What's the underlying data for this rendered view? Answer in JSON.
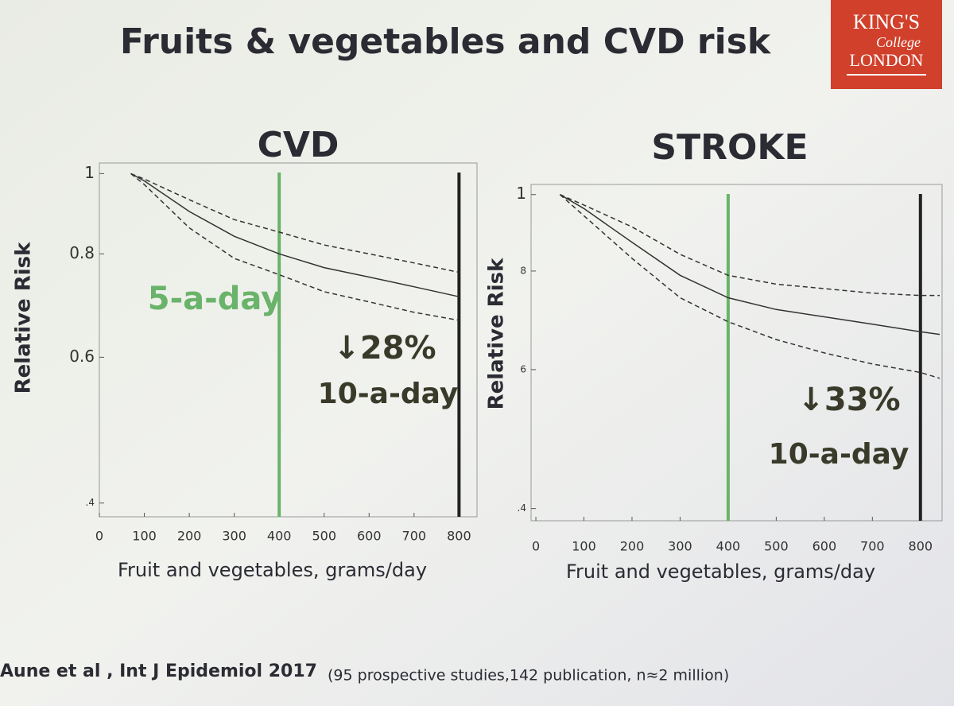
{
  "title": "Fruits & vegetables and CVD risk",
  "logo": {
    "line1": "KING'S",
    "line2": "College",
    "line3": "LONDON"
  },
  "citation": {
    "main": "Aune et al , Int J Epidemiol 2017",
    "note": "(95 prospective studies,142 publication, n≈2 million)"
  },
  "chart_data": [
    {
      "type": "line",
      "title": "CVD",
      "xlabel": "Fruit and vegetables, grams/day",
      "ylabel": "Relative Risk",
      "log_y": true,
      "x": [
        70,
        100,
        200,
        300,
        400,
        500,
        600,
        700,
        800
      ],
      "series": [
        {
          "name": "central",
          "color": "#333333",
          "dashed": false,
          "values": [
            1,
            0.98,
            0.9,
            0.84,
            0.8,
            0.77,
            0.75,
            0.73,
            0.71
          ]
        },
        {
          "name": "upper",
          "color": "#333333",
          "dashed": true,
          "values": [
            1,
            0.985,
            0.93,
            0.88,
            0.85,
            0.82,
            0.8,
            0.78,
            0.76
          ]
        },
        {
          "name": "lower",
          "color": "#333333",
          "dashed": true,
          "values": [
            1,
            0.97,
            0.86,
            0.79,
            0.755,
            0.72,
            0.7,
            0.68,
            0.665
          ]
        }
      ],
      "vlines": [
        {
          "x": 400,
          "color": "#6ab36a"
        },
        {
          "x": 800,
          "color": "#222222"
        }
      ],
      "annotations": [
        {
          "text": "5-a-day",
          "color": "#6ab36a"
        },
        {
          "text": "↓28%",
          "color": "#3a3a2a"
        },
        {
          "text": "10-a-day",
          "color": "#3a3a2a"
        }
      ],
      "xlim": [
        0,
        840
      ],
      "xticks": [
        0,
        100,
        200,
        300,
        400,
        500,
        600,
        700,
        800
      ],
      "ylim": [
        0.385,
        1.03
      ],
      "yticks": [
        1,
        0.8,
        0.6,
        {
          "value": 0.4,
          "label": ".4"
        }
      ]
    },
    {
      "type": "line",
      "title": "STROKE",
      "xlabel": "Fruit and vegetables, grams/day",
      "ylabel": "Relative Risk",
      "log_y": true,
      "x": [
        50,
        100,
        200,
        300,
        400,
        500,
        600,
        700,
        800,
        840
      ],
      "series": [
        {
          "name": "central",
          "color": "#333333",
          "dashed": false,
          "values": [
            1,
            0.96,
            0.87,
            0.79,
            0.74,
            0.715,
            0.7,
            0.685,
            0.67,
            0.665
          ]
        },
        {
          "name": "upper",
          "color": "#333333",
          "dashed": true,
          "values": [
            1,
            0.97,
            0.91,
            0.84,
            0.79,
            0.77,
            0.76,
            0.75,
            0.745,
            0.745
          ]
        },
        {
          "name": "lower",
          "color": "#333333",
          "dashed": true,
          "values": [
            1,
            0.94,
            0.83,
            0.74,
            0.69,
            0.655,
            0.63,
            0.61,
            0.595,
            0.585
          ]
        }
      ],
      "vlines": [
        {
          "x": 400,
          "color": "#6ab36a"
        },
        {
          "x": 800,
          "color": "#222222"
        }
      ],
      "annotations": [
        {
          "text": "↓33%",
          "color": "#3a3a2a"
        },
        {
          "text": "10-a-day",
          "color": "#3a3a2a"
        }
      ],
      "xlim": [
        -10,
        845
      ],
      "xticks": [
        0,
        100,
        200,
        300,
        400,
        500,
        600,
        700,
        800
      ],
      "ylim": [
        0.386,
        1.03
      ],
      "yticks": [
        1,
        {
          "value": 0.8,
          "label": "8"
        },
        {
          "value": 0.6,
          "label": "6"
        },
        {
          "value": 0.4,
          "label": ".4"
        }
      ]
    }
  ]
}
